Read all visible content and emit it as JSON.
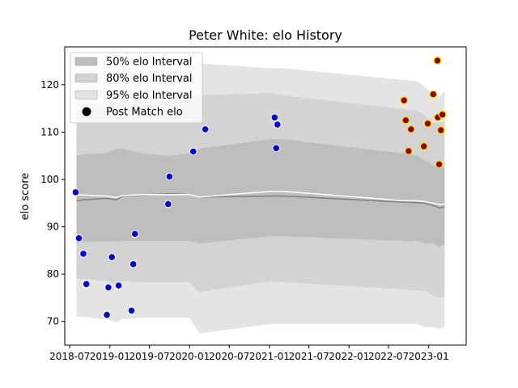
{
  "chart_data": {
    "type": "scatter",
    "title": "Peter White: elo History",
    "xlabel": "",
    "ylabel": "elo score",
    "xlim": [
      "2018-06-08",
      "2023-06-22"
    ],
    "ylim": [
      65,
      128
    ],
    "x_ticks": [
      "2018-07",
      "2019-01",
      "2019-07",
      "2020-01",
      "2020-07",
      "2021-01",
      "2021-07",
      "2022-01",
      "2022-07",
      "2023-01"
    ],
    "y_ticks": [
      70,
      80,
      90,
      100,
      110,
      120
    ],
    "legend_position": "top-left",
    "legend": [
      {
        "label": "50% elo Interval",
        "color": "#bdbdbd"
      },
      {
        "label": "80% elo Interval",
        "color": "#d3d3d3"
      },
      {
        "label": "95% elo Interval",
        "color": "#e4e4e4"
      },
      {
        "label": "Post Match elo",
        "color": "#000000"
      }
    ],
    "colors": {
      "band95": "#e4e4e4",
      "band80": "#d3d3d3",
      "band50": "#bdbdbd",
      "median_line": "#808080",
      "mean_line": "#ffffff",
      "point_fill": "#0000cc",
      "point_edge": "#ffffff",
      "recent_fill": "#8b0000",
      "recent_edge": "#ffd700"
    },
    "bands": {
      "x": [
        "2018-08-01",
        "2018-09-01",
        "2018-12-15",
        "2019-02-01",
        "2019-03-01",
        "2019-06-01",
        "2019-10-01",
        "2020-01-01",
        "2020-02-15",
        "2021-01-10",
        "2021-03-01",
        "2022-09-10",
        "2022-11-10",
        "2022-12-15",
        "2023-01-20",
        "2023-02-20",
        "2023-03-15"
      ],
      "band95_lower": [
        71.0,
        71.0,
        70.5,
        69.8,
        70.5,
        70.8,
        70.8,
        70.8,
        67.5,
        69.5,
        69.5,
        69.5,
        69.5,
        68.8,
        68.8,
        68.5,
        68.8
      ],
      "band95_upper": [
        122.5,
        123.5,
        123.7,
        124.0,
        124.0,
        124.0,
        124.0,
        124.0,
        124.5,
        123.5,
        123.5,
        121.0,
        120.8,
        119.5,
        118.0,
        117.5,
        118.7
      ],
      "band80_lower": [
        79.0,
        79.0,
        78.5,
        77.8,
        78.5,
        78.3,
        78.3,
        78.3,
        76.2,
        78.5,
        78.3,
        76.8,
        76.5,
        76.5,
        75.5,
        75.0,
        75.2
      ],
      "band80_upper": [
        114.5,
        114.8,
        115.5,
        116.0,
        116.0,
        116.3,
        116.5,
        117.0,
        117.8,
        118.2,
        117.8,
        114.8,
        114.5,
        113.5,
        112.0,
        111.8,
        112.2
      ],
      "band50_lower": [
        86.5,
        86.8,
        86.8,
        86.8,
        87.0,
        87.0,
        87.0,
        87.0,
        86.5,
        88.0,
        88.0,
        87.0,
        87.0,
        86.5,
        86.5,
        85.8,
        86.2
      ],
      "band50_upper": [
        105.0,
        105.3,
        105.5,
        106.5,
        106.5,
        105.5,
        105.0,
        105.5,
        106.5,
        108.5,
        108.5,
        105.5,
        105.0,
        104.0,
        103.0,
        102.5,
        102.8
      ],
      "median": [
        95.5,
        95.7,
        96.0,
        95.7,
        96.5,
        96.7,
        97.0,
        96.8,
        96.3,
        96.5,
        96.5,
        95.2,
        95.1,
        95.0,
        94.5,
        94.0,
        94.2
      ],
      "mean": [
        96.8,
        96.7,
        96.5,
        96.2,
        96.6,
        96.8,
        96.8,
        96.8,
        96.3,
        97.5,
        97.5,
        95.5,
        95.5,
        95.3,
        95.0,
        94.7,
        94.8
      ]
    },
    "series": [
      {
        "name": "Post Match elo",
        "x": [
          "2018-07-28",
          "2018-08-12",
          "2018-09-01",
          "2018-09-15",
          "2018-12-18",
          "2018-12-25",
          "2019-01-10",
          "2019-02-10",
          "2019-04-10",
          "2019-04-18",
          "2019-04-26",
          "2019-09-25",
          "2019-10-01",
          "2020-01-18",
          "2020-03-13",
          "2021-01-25",
          "2021-02-01",
          "2021-02-07"
        ],
        "y": [
          97.3,
          87.6,
          84.3,
          77.9,
          71.4,
          77.2,
          83.6,
          77.6,
          72.3,
          82.1,
          88.5,
          94.8,
          100.6,
          105.9,
          110.6,
          113.1,
          106.6,
          111.6
        ]
      },
      {
        "name": "",
        "x": [
          "2022-09-10",
          "2022-09-18",
          "2022-10-01",
          "2022-10-12",
          "2022-12-10",
          "2022-12-28",
          "2023-01-22",
          "2023-02-10",
          "2023-02-12",
          "2023-02-18",
          "2023-02-26",
          "2023-03-05"
        ],
        "y": [
          116.7,
          112.5,
          106.0,
          110.6,
          107.0,
          111.8,
          118.0,
          125.1,
          113.1,
          103.2,
          110.4,
          113.7
        ]
      }
    ]
  }
}
